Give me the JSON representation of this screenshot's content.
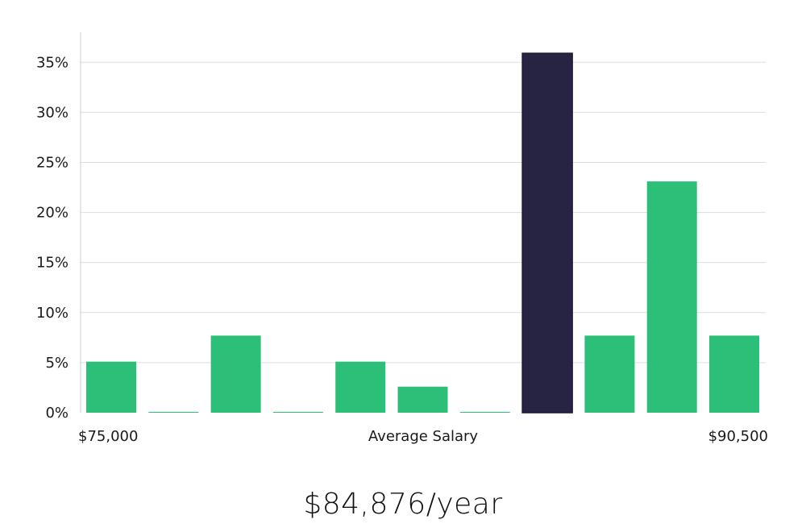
{
  "chart_data": {
    "type": "bar",
    "title": "",
    "xlabel": "Average Salary",
    "ylabel": "",
    "x_min_label": "$75,000",
    "x_max_label": "$90,500",
    "ylim": [
      0,
      0.38
    ],
    "yticks": [
      0,
      0.05,
      0.1,
      0.15,
      0.2,
      0.25,
      0.3,
      0.35
    ],
    "ytick_labels": [
      "0%",
      "5%",
      "10%",
      "15%",
      "20%",
      "25%",
      "30%",
      "35%"
    ],
    "grid": true,
    "values": [
      0.051,
      0.0,
      0.077,
      0.0,
      0.051,
      0.026,
      0.0,
      0.359,
      0.077,
      0.231,
      0.077
    ],
    "highlight_index": 7,
    "colors": {
      "bar": "#2bbf78",
      "highlight": "#272443",
      "grid": "#dddddd",
      "axis": "#cccccc"
    }
  },
  "salary_summary": "$84,876/year"
}
